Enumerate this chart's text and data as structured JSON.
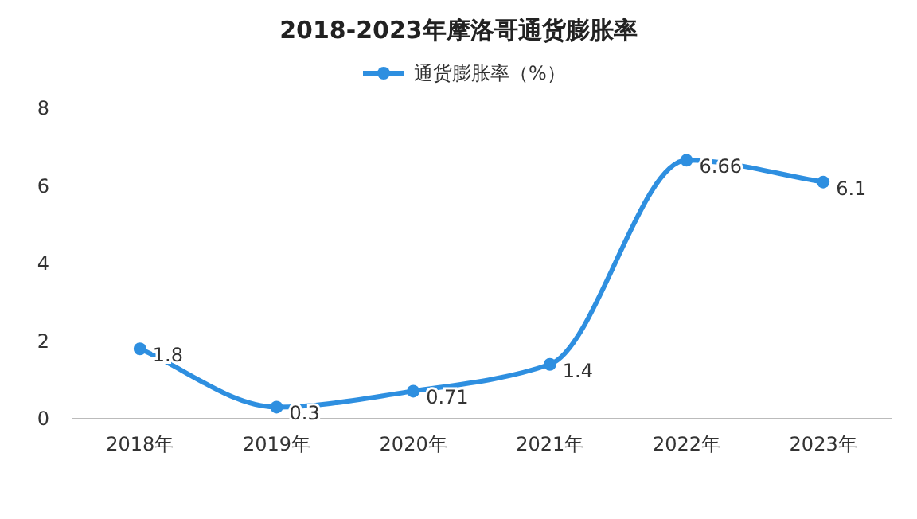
{
  "chart_data": {
    "type": "line",
    "title": "2018-2023年摩洛哥通货膨胀率",
    "categories": [
      "2018年",
      "2019年",
      "2020年",
      "2021年",
      "2022年",
      "2023年"
    ],
    "series": [
      {
        "name": "通货膨胀率（%）",
        "color": "#2e8fe0",
        "values": [
          1.8,
          0.3,
          0.71,
          1.4,
          6.66,
          6.1
        ]
      }
    ],
    "ylim": [
      0,
      8
    ],
    "yticks": [
      0,
      2,
      4,
      6,
      8
    ],
    "legend": "top",
    "marker": "circle",
    "line_style": "solid",
    "data_labels": true,
    "grid": false
  }
}
